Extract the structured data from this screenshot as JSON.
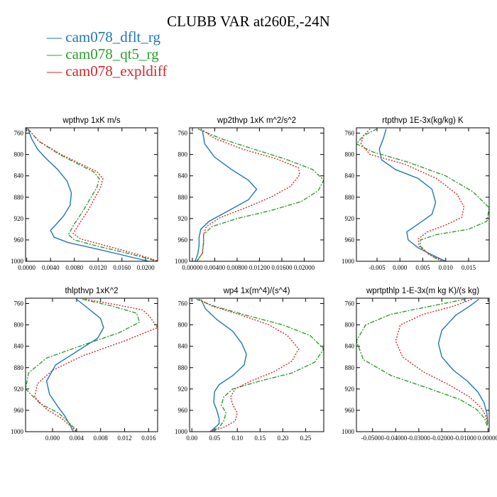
{
  "title": "CLUBB VAR at260E,-24N",
  "legend": [
    {
      "label": "cam078_dflt_rg",
      "color": "#1f77b4",
      "dash": ""
    },
    {
      "label": "cam078_qt5_rg",
      "color": "#2ca02c",
      "dash": "6,2,2,2"
    },
    {
      "label": "cam078_expldiff",
      "color": "#d62728",
      "dash": "2,2"
    }
  ],
  "chart_data": [
    {
      "type": "line",
      "title": "wpthvp   1xK m/s",
      "xlim": [
        -0.0002,
        0.022
      ],
      "ylim": [
        1000,
        750
      ],
      "xticks": [
        0.0,
        0.004,
        0.008,
        0.012,
        0.016,
        0.02
      ],
      "xtick_labels": [
        "0.0000",
        "0.0040",
        "0.0080",
        "0.0120",
        "0.0160",
        "0.0200"
      ],
      "yticks": [
        760,
        800,
        840,
        880,
        920,
        960,
        1000
      ],
      "series": [
        {
          "name": "cam078_dflt_rg",
          "x": [
            0.0002,
            0.0008,
            0.0018,
            0.0033,
            0.0052,
            0.0068,
            0.0075,
            0.0073,
            0.0062,
            0.005,
            0.004,
            0.0046,
            0.007,
            0.011,
            0.016,
            0.0205
          ],
          "y": [
            752,
            770,
            790,
            808,
            828,
            850,
            872,
            895,
            915,
            930,
            942,
            955,
            965,
            975,
            988,
            1000
          ]
        },
        {
          "name": "cam078_qt5_rg",
          "x": [
            0.0002,
            0.002,
            0.0055,
            0.009,
            0.0112,
            0.0122,
            0.0118,
            0.0108,
            0.0095,
            0.008,
            0.007,
            0.008,
            0.012,
            0.017,
            0.022
          ],
          "y": [
            752,
            775,
            800,
            820,
            832,
            845,
            862,
            880,
            905,
            930,
            950,
            960,
            972,
            985,
            1000
          ]
        },
        {
          "name": "cam078_expldiff",
          "x": [
            0.0002,
            0.002,
            0.0058,
            0.0095,
            0.0118,
            0.0128,
            0.0124,
            0.0115,
            0.0103,
            0.0088,
            0.0078,
            0.009,
            0.013,
            0.018,
            0.0222
          ],
          "y": [
            752,
            775,
            800,
            820,
            832,
            845,
            862,
            880,
            905,
            930,
            948,
            958,
            970,
            985,
            1000
          ]
        }
      ]
    },
    {
      "type": "line",
      "title": "wp2thvp   1xK m^2/s^2",
      "xlim": [
        -0.0005,
        0.0235
      ],
      "ylim": [
        1000,
        750
      ],
      "xticks": [
        0.0,
        0.004,
        0.008,
        0.012,
        0.016,
        0.02
      ],
      "xtick_labels": [
        "0.00000",
        "0.00400",
        "0.00800",
        "0.01200",
        "0.01600",
        "0.02000"
      ],
      "yticks": [
        760,
        800,
        840,
        880,
        920,
        960,
        1000
      ],
      "series": [
        {
          "name": "cam078_dflt_rg",
          "x": [
            0.0018,
            0.0022,
            0.004,
            0.007,
            0.01,
            0.0115,
            0.01,
            0.0065,
            0.003,
            0.0015,
            0.0012,
            0.0012,
            0.001,
            0.0005
          ],
          "y": [
            755,
            780,
            805,
            828,
            848,
            865,
            885,
            905,
            925,
            940,
            955,
            970,
            985,
            1000
          ]
        },
        {
          "name": "cam078_qt5_rg",
          "x": [
            0.001,
            0.005,
            0.011,
            0.017,
            0.0215,
            0.0235,
            0.0225,
            0.0195,
            0.014,
            0.008,
            0.0035,
            0.002,
            0.002,
            0.0018,
            0.0008
          ],
          "y": [
            752,
            770,
            790,
            810,
            828,
            848,
            868,
            888,
            905,
            920,
            935,
            950,
            965,
            985,
            1000
          ]
        },
        {
          "name": "cam078_expldiff",
          "x": [
            0.0015,
            0.004,
            0.009,
            0.015,
            0.019,
            0.0192,
            0.0175,
            0.014,
            0.0095,
            0.005,
            0.0025,
            0.002,
            0.002,
            0.0018,
            0.0008
          ],
          "y": [
            752,
            770,
            790,
            808,
            825,
            838,
            860,
            880,
            900,
            918,
            935,
            950,
            965,
            985,
            1000
          ]
        }
      ]
    },
    {
      "type": "line",
      "title": "rtpthvp   1E-3x(kg/kg) K",
      "xlim": [
        -0.0095,
        0.0195
      ],
      "ylim": [
        1000,
        750
      ],
      "xticks": [
        -0.005,
        0.0,
        0.005,
        0.01,
        0.015
      ],
      "xtick_labels": [
        "-0.005",
        "0.000",
        "0.005",
        "0.010",
        "0.015"
      ],
      "yticks": [
        760,
        800,
        840,
        880,
        920,
        960,
        1000
      ],
      "series": [
        {
          "name": "cam078_dflt_rg",
          "x": [
            -0.003,
            -0.0036,
            -0.0045,
            -0.004,
            -0.001,
            0.004,
            0.007,
            0.0078,
            0.007,
            0.004,
            0.0015,
            0.0018,
            0.004,
            0.0075,
            0.01
          ],
          "y": [
            752,
            770,
            790,
            810,
            828,
            845,
            865,
            890,
            912,
            930,
            945,
            960,
            975,
            990,
            1000
          ]
        },
        {
          "name": "cam078_qt5_rg",
          "x": [
            -0.005,
            -0.008,
            -0.0095,
            -0.006,
            0.002,
            0.01,
            0.016,
            0.0195,
            0.019,
            0.015,
            0.008,
            0.0045,
            0.0045,
            0.0065,
            0.009
          ],
          "y": [
            752,
            765,
            780,
            795,
            815,
            840,
            870,
            900,
            925,
            940,
            950,
            960,
            972,
            988,
            1000
          ]
        },
        {
          "name": "cam078_expldiff",
          "x": [
            -0.0065,
            -0.008,
            -0.0085,
            -0.0065,
            0.001,
            0.008,
            0.0125,
            0.014,
            0.0135,
            0.01,
            0.006,
            0.004,
            0.0042,
            0.0065,
            0.0095
          ],
          "y": [
            752,
            765,
            780,
            800,
            818,
            845,
            875,
            898,
            918,
            932,
            945,
            958,
            972,
            988,
            1000
          ]
        }
      ]
    },
    {
      "type": "line",
      "title": "thlpthvp   1xK^2",
      "xlim": [
        -0.0045,
        0.0175
      ],
      "ylim": [
        1000,
        750
      ],
      "xticks": [
        0.0,
        0.004,
        0.008,
        0.012,
        0.016
      ],
      "xtick_labels": [
        "0.000",
        "0.004",
        "0.008",
        "0.012",
        "0.016"
      ],
      "yticks": [
        760,
        800,
        840,
        880,
        920,
        960,
        1000
      ],
      "series": [
        {
          "name": "cam078_dflt_rg",
          "x": [
            0.004,
            0.006,
            0.008,
            0.0085,
            0.0075,
            0.004,
            0.0005,
            -0.001,
            -0.0005,
            0.001,
            0.002,
            0.0025,
            0.003,
            0.0032,
            0.0035
          ],
          "y": [
            752,
            770,
            788,
            805,
            825,
            850,
            875,
            905,
            930,
            955,
            970,
            980,
            988,
            995,
            1000
          ]
        },
        {
          "name": "cam078_qt5_rg",
          "x": [
            0.005,
            0.01,
            0.014,
            0.0145,
            0.011,
            0.005,
            -0.001,
            -0.004,
            -0.0045,
            -0.002,
            0.001,
            0.0025,
            0.0035,
            0.004
          ],
          "y": [
            752,
            765,
            778,
            795,
            815,
            838,
            862,
            890,
            920,
            948,
            965,
            980,
            992,
            1000
          ]
        },
        {
          "name": "cam078_expldiff",
          "x": [
            0.0055,
            0.0105,
            0.015,
            0.016,
            0.0175,
            0.012,
            0.005,
            0.0,
            -0.0025,
            -0.003,
            -0.001,
            0.0015,
            0.003,
            0.004
          ],
          "y": [
            752,
            762,
            772,
            782,
            805,
            830,
            858,
            885,
            910,
            935,
            958,
            975,
            990,
            1000
          ]
        }
      ]
    },
    {
      "type": "line",
      "title": "wp4   1x(m^4)/(s^4)",
      "xlim": [
        -0.005,
        0.29
      ],
      "ylim": [
        1000,
        750
      ],
      "xticks": [
        0.0,
        0.05,
        0.1,
        0.15,
        0.2,
        0.25
      ],
      "xtick_labels": [
        "0.00",
        "0.05",
        "0.10",
        "0.15",
        "0.20",
        "0.25"
      ],
      "yticks": [
        760,
        800,
        840,
        880,
        920,
        960,
        1000
      ],
      "series": [
        {
          "name": "cam078_dflt_rg",
          "x": [
            0.02,
            0.03,
            0.055,
            0.09,
            0.11,
            0.12,
            0.115,
            0.09,
            0.06,
            0.05,
            0.048,
            0.055,
            0.06,
            0.06,
            0.05,
            0.04
          ],
          "y": [
            752,
            770,
            790,
            812,
            835,
            855,
            875,
            895,
            912,
            925,
            945,
            960,
            975,
            985,
            993,
            1000
          ]
        },
        {
          "name": "cam078_qt5_rg",
          "x": [
            0.01,
            0.05,
            0.12,
            0.2,
            0.26,
            0.29,
            0.27,
            0.22,
            0.15,
            0.09,
            0.07,
            0.065,
            0.075,
            0.07,
            0.06,
            0.04
          ],
          "y": [
            752,
            765,
            782,
            800,
            820,
            845,
            870,
            890,
            905,
            920,
            935,
            950,
            965,
            980,
            992,
            1000
          ]
        },
        {
          "name": "cam078_expldiff",
          "x": [
            0.015,
            0.045,
            0.11,
            0.17,
            0.21,
            0.235,
            0.22,
            0.18,
            0.13,
            0.095,
            0.085,
            0.09,
            0.1,
            0.095,
            0.07,
            0.04
          ],
          "y": [
            752,
            765,
            782,
            800,
            820,
            845,
            868,
            888,
            905,
            920,
            935,
            950,
            965,
            980,
            992,
            1000
          ]
        }
      ]
    },
    {
      "type": "line",
      "title": "wprtpthlp   1-E-3x(m kg K)/(s kg)",
      "xlim": [
        -0.057,
        0.0005
      ],
      "ylim": [
        1000,
        750
      ],
      "xticks": [
        -0.05,
        -0.04,
        -0.03,
        -0.02,
        -0.01,
        0.0
      ],
      "xtick_labels": [
        "-0.05000",
        "-0.04000",
        "-0.03000",
        "-0.02000",
        "-0.01000",
        "0.00000"
      ],
      "yticks": [
        760,
        800,
        840,
        880,
        920,
        960,
        1000
      ],
      "series": [
        {
          "name": "cam078_dflt_rg",
          "x": [
            -0.004,
            -0.008,
            -0.014,
            -0.02,
            -0.0215,
            -0.02,
            -0.015,
            -0.009,
            -0.0045,
            -0.0018,
            -0.0005,
            -0.0001
          ],
          "y": [
            752,
            765,
            782,
            810,
            835,
            860,
            885,
            905,
            925,
            945,
            965,
            985
          ]
        },
        {
          "name": "cam078_qt5_rg",
          "x": [
            -0.01,
            -0.025,
            -0.042,
            -0.053,
            -0.057,
            -0.054,
            -0.042,
            -0.025,
            -0.012,
            -0.005,
            -0.0015,
            -0.0003
          ],
          "y": [
            752,
            765,
            780,
            800,
            830,
            865,
            895,
            920,
            940,
            958,
            975,
            990
          ]
        },
        {
          "name": "cam078_expldiff",
          "x": [
            -0.007,
            -0.015,
            -0.028,
            -0.038,
            -0.04,
            -0.037,
            -0.028,
            -0.017,
            -0.008,
            -0.003,
            -0.0008,
            -0.0002
          ],
          "y": [
            752,
            765,
            780,
            800,
            830,
            860,
            888,
            912,
            935,
            955,
            972,
            988
          ]
        }
      ]
    }
  ]
}
